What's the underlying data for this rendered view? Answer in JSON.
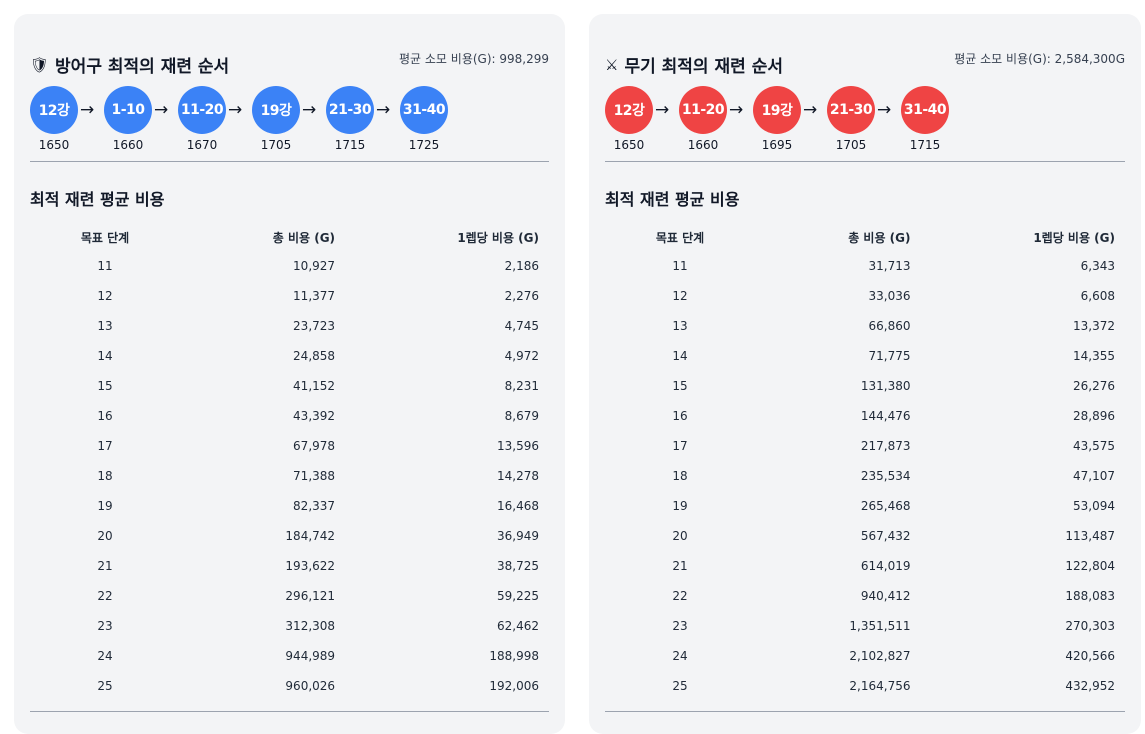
{
  "armor": {
    "icon": "shield-icon",
    "title": "방어구 최적의 재련 순서",
    "avg_cost": "평균 소모 비용(G): 998,299",
    "color": "#3b82f6",
    "sequence": [
      {
        "label": "12강",
        "sub": "1650"
      },
      {
        "label": "1-10",
        "sub": "1660"
      },
      {
        "label": "11-20",
        "sub": "1670"
      },
      {
        "label": "19강",
        "sub": "1705"
      },
      {
        "label": "21-30",
        "sub": "1715"
      },
      {
        "label": "31-40",
        "sub": "1725"
      }
    ],
    "arrow": "→",
    "table_title": "최적 재련 평균 비용",
    "columns": [
      "목표 단계",
      "총 비용 (G)",
      "1렙당 비용 (G)"
    ],
    "rows": [
      [
        "11",
        "10,927",
        "2,186"
      ],
      [
        "12",
        "11,377",
        "2,276"
      ],
      [
        "13",
        "23,723",
        "4,745"
      ],
      [
        "14",
        "24,858",
        "4,972"
      ],
      [
        "15",
        "41,152",
        "8,231"
      ],
      [
        "16",
        "43,392",
        "8,679"
      ],
      [
        "17",
        "67,978",
        "13,596"
      ],
      [
        "18",
        "71,388",
        "14,278"
      ],
      [
        "19",
        "82,337",
        "16,468"
      ],
      [
        "20",
        "184,742",
        "36,949"
      ],
      [
        "21",
        "193,622",
        "38,725"
      ],
      [
        "22",
        "296,121",
        "59,225"
      ],
      [
        "23",
        "312,308",
        "62,462"
      ],
      [
        "24",
        "944,989",
        "188,998"
      ],
      [
        "25",
        "960,026",
        "192,006"
      ]
    ]
  },
  "weapon": {
    "icon": "crossed-swords-icon",
    "title": "무기 최적의 재련 순서",
    "avg_cost": "평균 소모 비용(G): 2,584,300G",
    "color": "#ef4444",
    "sequence": [
      {
        "label": "12강",
        "sub": "1650"
      },
      {
        "label": "11-20",
        "sub": "1660"
      },
      {
        "label": "19강",
        "sub": "1695"
      },
      {
        "label": "21-30",
        "sub": "1705"
      },
      {
        "label": "31-40",
        "sub": "1715"
      }
    ],
    "arrow": "→",
    "table_title": "최적 재련 평균 비용",
    "columns": [
      "목표 단계",
      "총 비용 (G)",
      "1렙당 비용 (G)"
    ],
    "rows": [
      [
        "11",
        "31,713",
        "6,343"
      ],
      [
        "12",
        "33,036",
        "6,608"
      ],
      [
        "13",
        "66,860",
        "13,372"
      ],
      [
        "14",
        "71,775",
        "14,355"
      ],
      [
        "15",
        "131,380",
        "26,276"
      ],
      [
        "16",
        "144,476",
        "28,896"
      ],
      [
        "17",
        "217,873",
        "43,575"
      ],
      [
        "18",
        "235,534",
        "47,107"
      ],
      [
        "19",
        "265,468",
        "53,094"
      ],
      [
        "20",
        "567,432",
        "113,487"
      ],
      [
        "21",
        "614,019",
        "122,804"
      ],
      [
        "22",
        "940,412",
        "188,083"
      ],
      [
        "23",
        "1,351,511",
        "270,303"
      ],
      [
        "24",
        "2,102,827",
        "420,566"
      ],
      [
        "25",
        "2,164,756",
        "432,952"
      ]
    ]
  }
}
